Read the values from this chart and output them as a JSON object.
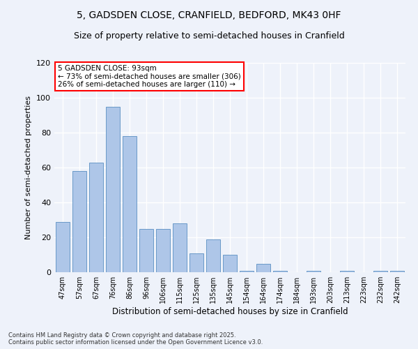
{
  "title_line1": "5, GADSDEN CLOSE, CRANFIELD, BEDFORD, MK43 0HF",
  "title_line2": "Size of property relative to semi-detached houses in Cranfield",
  "categories": [
    "47sqm",
    "57sqm",
    "67sqm",
    "76sqm",
    "86sqm",
    "96sqm",
    "106sqm",
    "115sqm",
    "125sqm",
    "135sqm",
    "145sqm",
    "154sqm",
    "164sqm",
    "174sqm",
    "184sqm",
    "193sqm",
    "203sqm",
    "213sqm",
    "223sqm",
    "232sqm",
    "242sqm"
  ],
  "values": [
    29,
    58,
    63,
    95,
    78,
    25,
    25,
    28,
    11,
    19,
    10,
    1,
    5,
    1,
    0,
    1,
    0,
    1,
    0,
    1,
    1
  ],
  "bar_color": "#aec6e8",
  "bar_edge_color": "#5a8fc2",
  "ylabel": "Number of semi-detached properties",
  "xlabel": "Distribution of semi-detached houses by size in Cranfield",
  "ylim": [
    0,
    120
  ],
  "yticks": [
    0,
    20,
    40,
    60,
    80,
    100,
    120
  ],
  "annotation_box_text": "5 GADSDEN CLOSE: 93sqm\n← 73% of semi-detached houses are smaller (306)\n26% of semi-detached houses are larger (110) →",
  "footer_line1": "Contains HM Land Registry data © Crown copyright and database right 2025.",
  "footer_line2": "Contains public sector information licensed under the Open Government Licence v3.0.",
  "bg_color": "#eef2fa",
  "grid_color": "#ffffff",
  "title_fontsize": 10,
  "subtitle_fontsize": 9,
  "bar_width": 0.85
}
